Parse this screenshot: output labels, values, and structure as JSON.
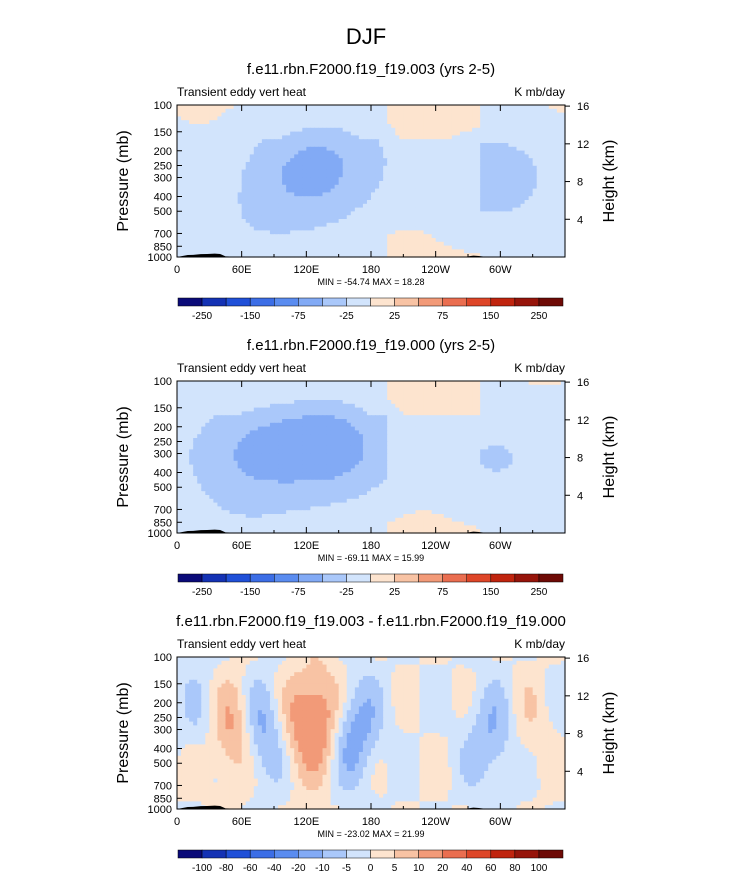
{
  "figure_title": "DJF",
  "chart_data": [
    {
      "type": "heatmap",
      "title": "f.e11.rbn.F2000.f19_f19.003 (yrs 2-5)",
      "left_string": "Transient eddy vert heat",
      "right_string": "K mb/day",
      "ylabel": "Pressure (mb)",
      "ylabel_right": "Height (km)",
      "x_ticks": [
        "0",
        "60E",
        "120E",
        "180",
        "120W",
        "60W"
      ],
      "y_ticks": [
        "100",
        "150",
        "200",
        "250",
        "300",
        "400",
        "500",
        "700",
        "850",
        "1000"
      ],
      "y_right_ticks": [
        "16",
        "12",
        "8",
        "4"
      ],
      "stats": "MIN = -54.74  MAX = 18.28",
      "colorbar_labels": [
        "-250",
        "-150",
        "-75",
        "-25",
        "25",
        "75",
        "150",
        "250"
      ],
      "features": [
        {
          "lon": 120,
          "p": 290,
          "value": -45
        },
        {
          "lon": 60,
          "p": 700,
          "value": -12
        },
        {
          "lon": 295,
          "p": 300,
          "value": -30
        },
        {
          "lon": 160,
          "p": 200,
          "value": -15
        }
      ]
    },
    {
      "type": "heatmap",
      "title": "f.e11.rbn.F2000.f19_f19.000 (yrs 2-5)",
      "left_string": "Transient eddy vert heat",
      "right_string": "K mb/day",
      "ylabel": "Pressure (mb)",
      "ylabel_right": "Height (km)",
      "x_ticks": [
        "0",
        "60E",
        "120E",
        "180",
        "120W",
        "60W"
      ],
      "y_ticks": [
        "100",
        "150",
        "200",
        "250",
        "300",
        "400",
        "500",
        "700",
        "850",
        "1000"
      ],
      "y_right_ticks": [
        "16",
        "12",
        "8",
        "4"
      ],
      "stats": "MIN = -69.11  MAX = 15.99",
      "colorbar_labels": [
        "-250",
        "-150",
        "-75",
        "-25",
        "25",
        "75",
        "150",
        "250"
      ],
      "features": [
        {
          "lon": 145,
          "p": 270,
          "value": -55
        },
        {
          "lon": 70,
          "p": 290,
          "value": -40
        },
        {
          "lon": 60,
          "p": 700,
          "value": -10
        },
        {
          "lon": 295,
          "p": 320,
          "value": -20
        }
      ]
    },
    {
      "type": "heatmap",
      "title": "f.e11.rbn.F2000.f19_f19.003 - f.e11.rbn.F2000.f19_f19.000",
      "left_string": "Transient eddy vert heat",
      "right_string": "K mb/day",
      "ylabel": "Pressure (mb)",
      "ylabel_right": "Height (km)",
      "x_ticks": [
        "0",
        "60E",
        "120E",
        "180",
        "120W",
        "60W"
      ],
      "y_ticks": [
        "100",
        "150",
        "200",
        "250",
        "300",
        "400",
        "500",
        "700",
        "850",
        "1000"
      ],
      "y_right_ticks": [
        "16",
        "12",
        "8",
        "4"
      ],
      "stats": "MIN = -23.02  MAX = 21.99",
      "colorbar_labels": [
        "-100",
        "-80",
        "-60",
        "-40",
        "-20",
        "-10",
        "-5",
        "0",
        "5",
        "10",
        "20",
        "40",
        "60",
        "80",
        "100"
      ],
      "features": [
        {
          "lon": 52,
          "p": 300,
          "value": 18
        },
        {
          "lon": 82,
          "p": 310,
          "value": -22
        },
        {
          "lon": 100,
          "p": 300,
          "value": 12
        },
        {
          "lon": 135,
          "p": 260,
          "value": 20
        },
        {
          "lon": 160,
          "p": 300,
          "value": -18
        },
        {
          "lon": 295,
          "p": 350,
          "value": -12
        },
        {
          "lon": 320,
          "p": 320,
          "value": 6
        },
        {
          "lon": 30,
          "p": 250,
          "value": -8
        }
      ]
    }
  ],
  "colorbar_colors": [
    "#0a0a78",
    "#1432b4",
    "#2050d8",
    "#3c6ee6",
    "#5a8cf0",
    "#82aaf5",
    "#aac8fa",
    "#d2e4fc",
    "#fde4cf",
    "#f8c3a4",
    "#f29a78",
    "#ea6e50",
    "#de4628",
    "#c0240e",
    "#96140a",
    "#6e0a06"
  ]
}
